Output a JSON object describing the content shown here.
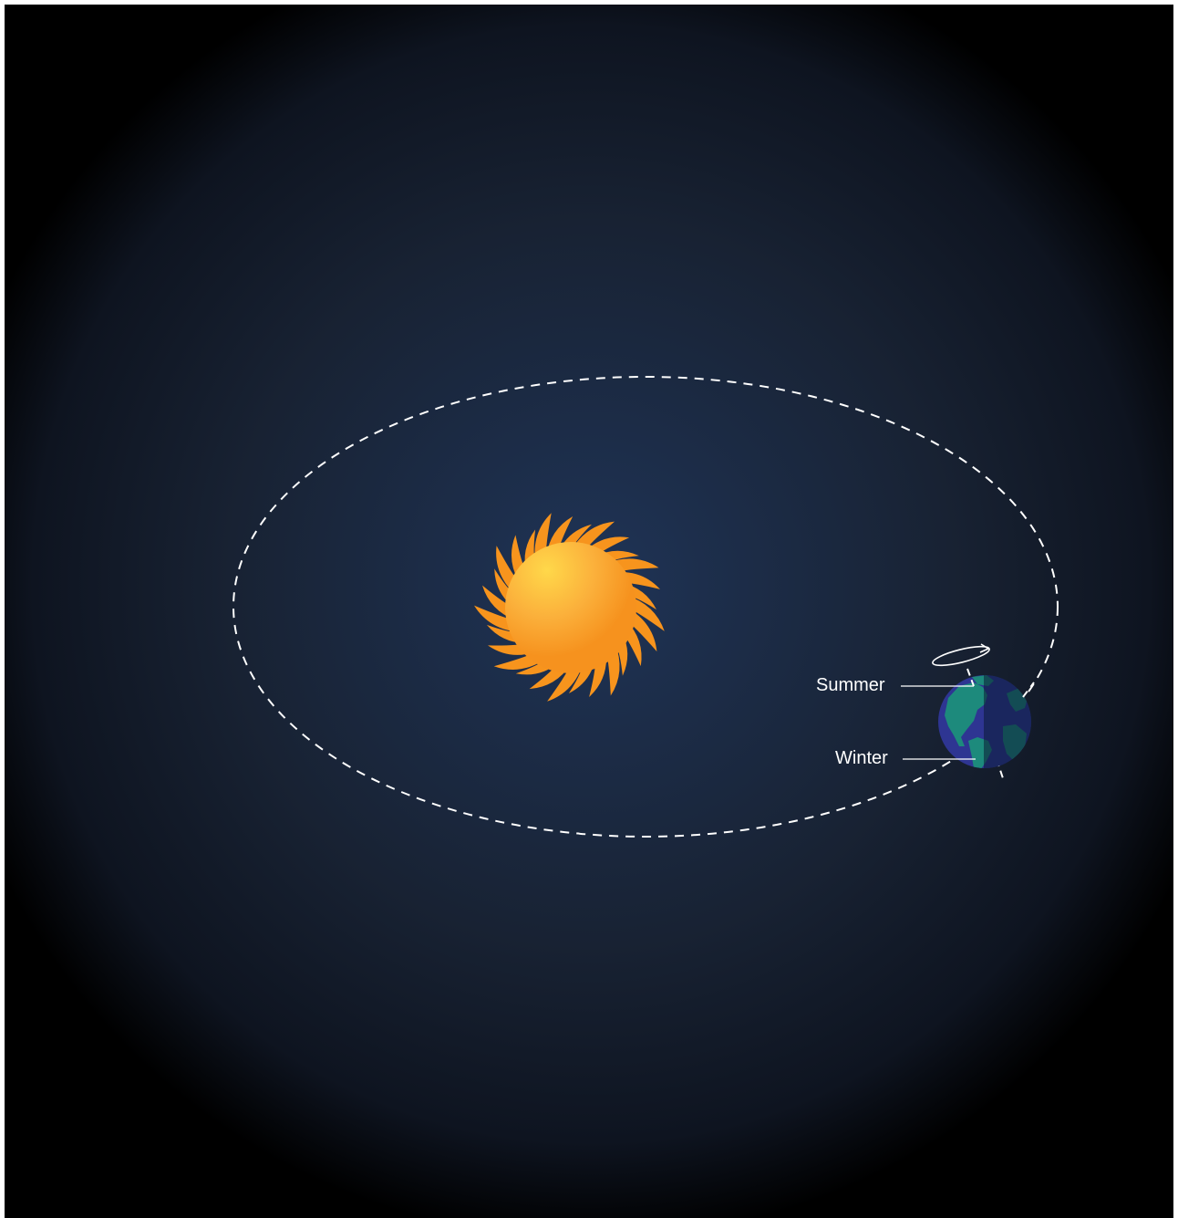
{
  "labels": {
    "summer": "Summer",
    "winter": "Winter"
  },
  "colors": {
    "space_center": "#1f3457",
    "space_edge": "#000000",
    "sun_core_light": "#ffd84a",
    "sun_core_dark": "#f6921e",
    "sun_rays": "#f7941d",
    "orbit": "#ffffff",
    "ocean": "#2e3592",
    "land": "#1d8a7c",
    "night_shade": "#0b1a33",
    "label_text": "#ffffff"
  },
  "icons": {
    "sun": "sun-icon",
    "earth": "earth-icon",
    "rotation": "rotation-arrow-icon"
  }
}
